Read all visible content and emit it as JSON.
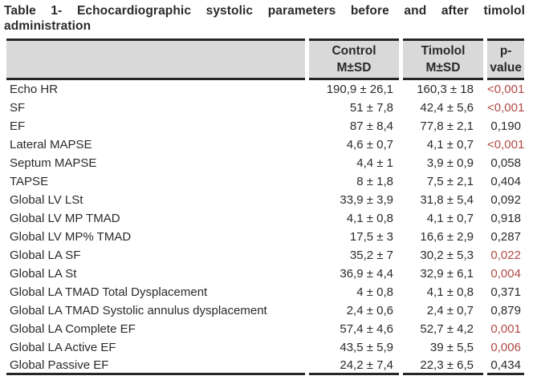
{
  "title": {
    "line1": "Table 1- Echocardiographic systolic parameters before and after timolol",
    "line2": "administration"
  },
  "table": {
    "header": {
      "control": {
        "line1": "Control",
        "line2": "M±SD"
      },
      "timolol": {
        "line1": "Timolol",
        "line2": "M±SD"
      },
      "pvalue": {
        "line1": "p-",
        "line2": "value"
      }
    },
    "rows": [
      {
        "label": "Echo HR",
        "control": "190,9 ± 26,1",
        "timolol": "160,3 ± 18",
        "p": "<0,001",
        "significant": true
      },
      {
        "label": "SF",
        "control": "51 ± 7,8",
        "timolol": "42,4 ± 5,6",
        "p": "<0,001",
        "significant": true
      },
      {
        "label": "EF",
        "control": "87 ± 8,4",
        "timolol": "77,8 ± 2,1",
        "p": "0,190",
        "significant": false
      },
      {
        "label": "Lateral MAPSE",
        "control": "4,6 ± 0,7",
        "timolol": "4,1 ± 0,7",
        "p": "<0,001",
        "significant": true
      },
      {
        "label": "Septum MAPSE",
        "control": "4,4 ± 1",
        "timolol": "3,9 ± 0,9",
        "p": "0,058",
        "significant": false
      },
      {
        "label": "TAPSE",
        "control": "8 ± 1,8",
        "timolol": "7,5 ± 2,1",
        "p": "0,404",
        "significant": false
      },
      {
        "label": "Global LV LSt",
        "control": "33,9 ± 3,9",
        "timolol": "31,8 ± 5,4",
        "p": "0,092",
        "significant": false
      },
      {
        "label": "Global LV MP TMAD",
        "control": "4,1 ± 0,8",
        "timolol": "4,1 ± 0,7",
        "p": "0,918",
        "significant": false
      },
      {
        "label": "Global LV MP% TMAD",
        "control": "17,5 ± 3",
        "timolol": "16,6 ± 2,9",
        "p": "0,287",
        "significant": false
      },
      {
        "label": "Global LA SF",
        "control": "35,2 ± 7",
        "timolol": "30,2 ± 5,3",
        "p": "0,022",
        "significant": true
      },
      {
        "label": "Global LA St",
        "control": "36,9 ± 4,4",
        "timolol": "32,9 ± 6,1",
        "p": "0,004",
        "significant": true
      },
      {
        "label": "Global LA TMAD Total Dysplacement",
        "control": "4 ± 0,8",
        "timolol": "4,1 ± 0,8",
        "p": "0,371",
        "significant": false
      },
      {
        "label": "Global LA TMAD Systolic annulus dysplacement",
        "control": "2,4 ± 0,6",
        "timolol": "2,4 ± 0,7",
        "p": "0,879",
        "significant": false
      },
      {
        "label": "Global LA Complete EF",
        "control": "57,4 ± 4,6",
        "timolol": "52,7 ± 4,2",
        "p": "0,001",
        "significant": true
      },
      {
        "label": "Global LA Active EF",
        "control": "43,5 ± 5,9",
        "timolol": "39 ± 5,5",
        "p": "0,006",
        "significant": true
      },
      {
        "label": "Global Passive EF",
        "control": "24,2 ± 7,4",
        "timolol": "22,3 ± 6,5",
        "p": "0,434",
        "significant": false
      }
    ]
  },
  "colors": {
    "significant": "#b04a45",
    "header_bg": "#d9d9d9",
    "border": "#262626",
    "text": "#2a2a2a"
  }
}
